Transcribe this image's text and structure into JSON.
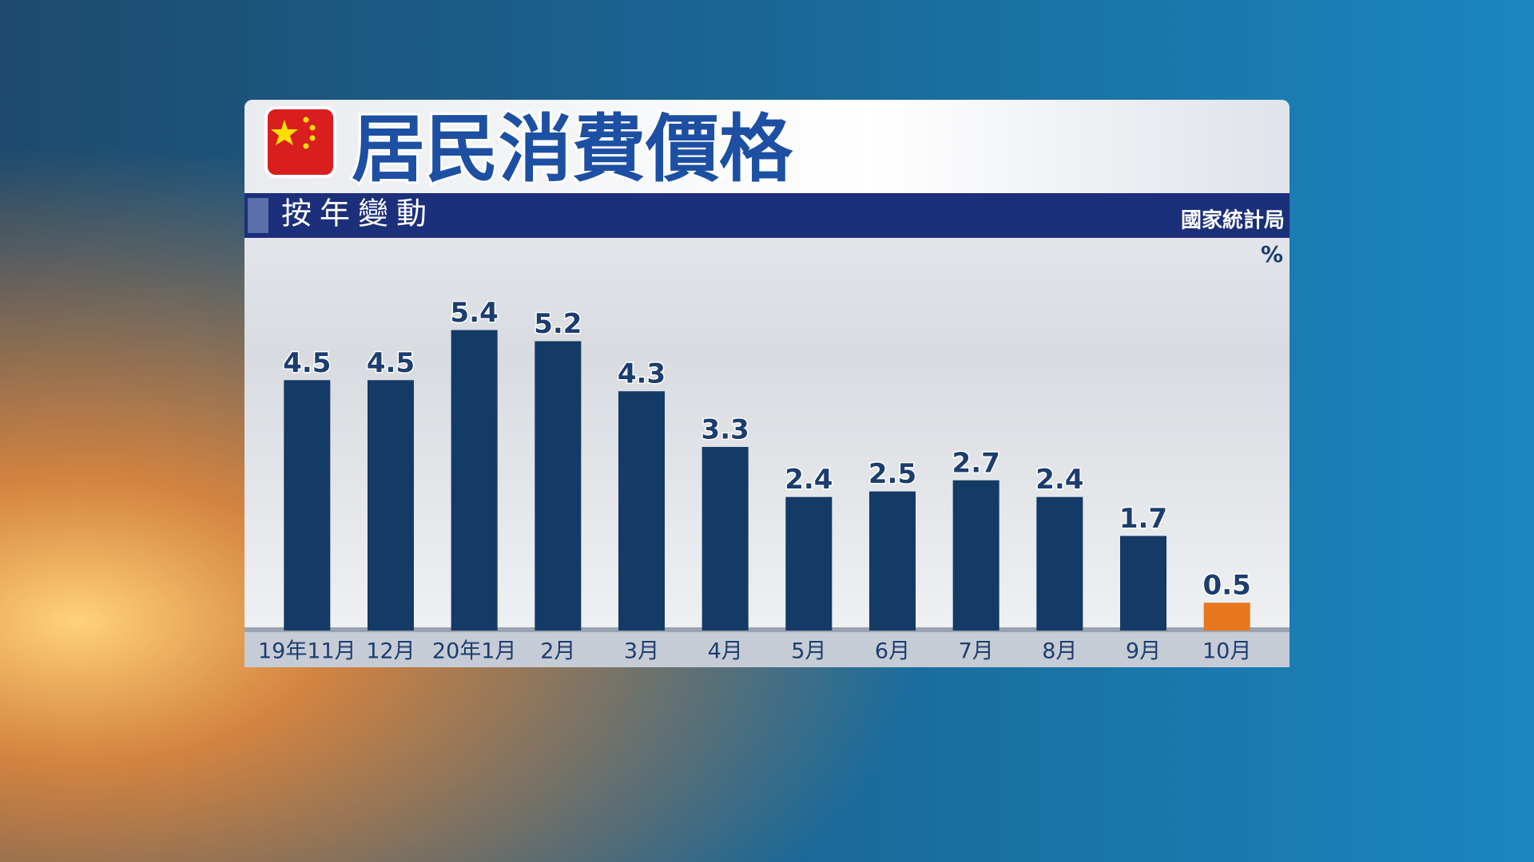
{
  "chart_data": {
    "type": "bar",
    "title": "居民消費價格",
    "subtitle": "按年變動",
    "source": "國家統計局",
    "unit": "%",
    "categories": [
      "19年11月",
      "12月",
      "20年1月",
      "2月",
      "3月",
      "4月",
      "5月",
      "6月",
      "7月",
      "8月",
      "9月",
      "10月"
    ],
    "values": [
      4.5,
      4.5,
      5.4,
      5.2,
      4.3,
      3.3,
      2.4,
      2.5,
      2.7,
      2.4,
      1.7,
      0.5
    ],
    "colors": [
      "#143a66",
      "#143a66",
      "#143a66",
      "#143a66",
      "#143a66",
      "#143a66",
      "#143a66",
      "#143a66",
      "#143a66",
      "#143a66",
      "#143a66",
      "#e8761e"
    ],
    "ylim": [
      0,
      7
    ]
  }
}
